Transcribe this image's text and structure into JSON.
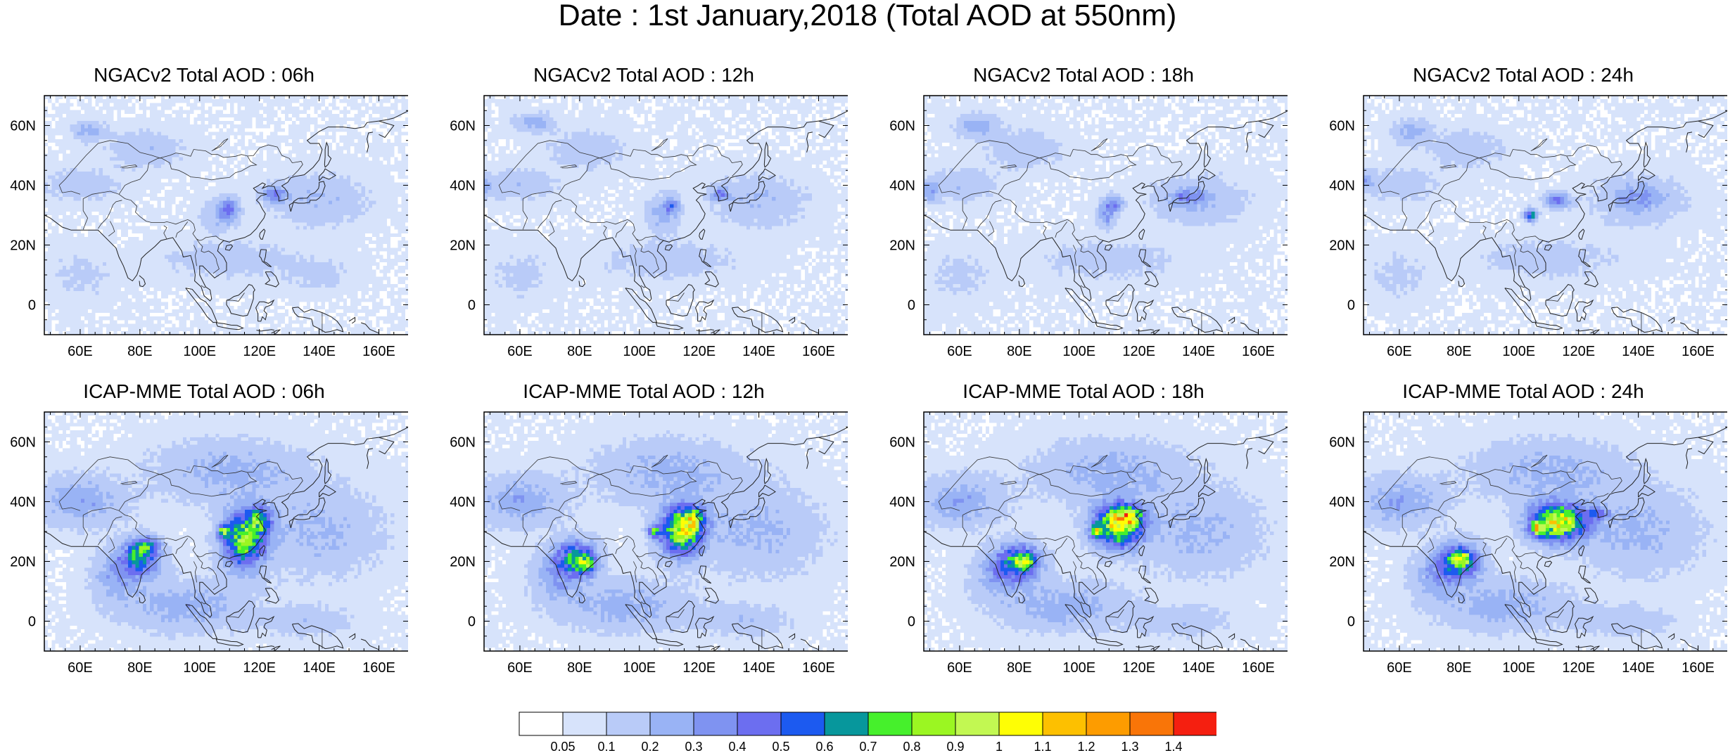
{
  "figure": {
    "title": "Date : 1st January,2018 (Total AOD at 550nm)",
    "lon_ticks": [
      "60E",
      "80E",
      "100E",
      "120E",
      "140E",
      "160E"
    ],
    "lat_ticks": [
      "60N",
      "40N",
      "20N",
      "0"
    ],
    "lon_range": [
      48,
      170
    ],
    "lat_range": [
      -10,
      70
    ],
    "panels": [
      {
        "title": "NGACv2 Total AOD : 06h",
        "model": "NGACv2",
        "hour": "06h"
      },
      {
        "title": "NGACv2 Total AOD : 12h",
        "model": "NGACv2",
        "hour": "12h"
      },
      {
        "title": "NGACv2 Total AOD : 18h",
        "model": "NGACv2",
        "hour": "18h"
      },
      {
        "title": "NGACv2 Total AOD : 24h",
        "model": "NGACv2",
        "hour": "24h"
      },
      {
        "title": "ICAP-MME Total AOD : 06h",
        "model": "ICAP-MME",
        "hour": "06h"
      },
      {
        "title": "ICAP-MME Total AOD : 12h",
        "model": "ICAP-MME",
        "hour": "12h"
      },
      {
        "title": "ICAP-MME Total AOD : 18h",
        "model": "ICAP-MME",
        "hour": "18h"
      },
      {
        "title": "ICAP-MME Total AOD : 24h",
        "model": "ICAP-MME",
        "hour": "24h"
      }
    ]
  },
  "colorbar": {
    "levels": [
      "0.05",
      "0.1",
      "0.2",
      "0.3",
      "0.4",
      "0.5",
      "0.6",
      "0.7",
      "0.8",
      "0.9",
      "1",
      "1.1",
      "1.2",
      "1.3",
      "1.4"
    ],
    "colors": [
      "#ffffff",
      "#d7e3fb",
      "#b9cbf8",
      "#99b3f5",
      "#7f93f1",
      "#6c6ef0",
      "#1c5af0",
      "#07979c",
      "#46f02c",
      "#9bf622",
      "#c2f852",
      "#fefe05",
      "#fdc000",
      "#fd9c00",
      "#f97508",
      "#f51f10"
    ]
  }
}
